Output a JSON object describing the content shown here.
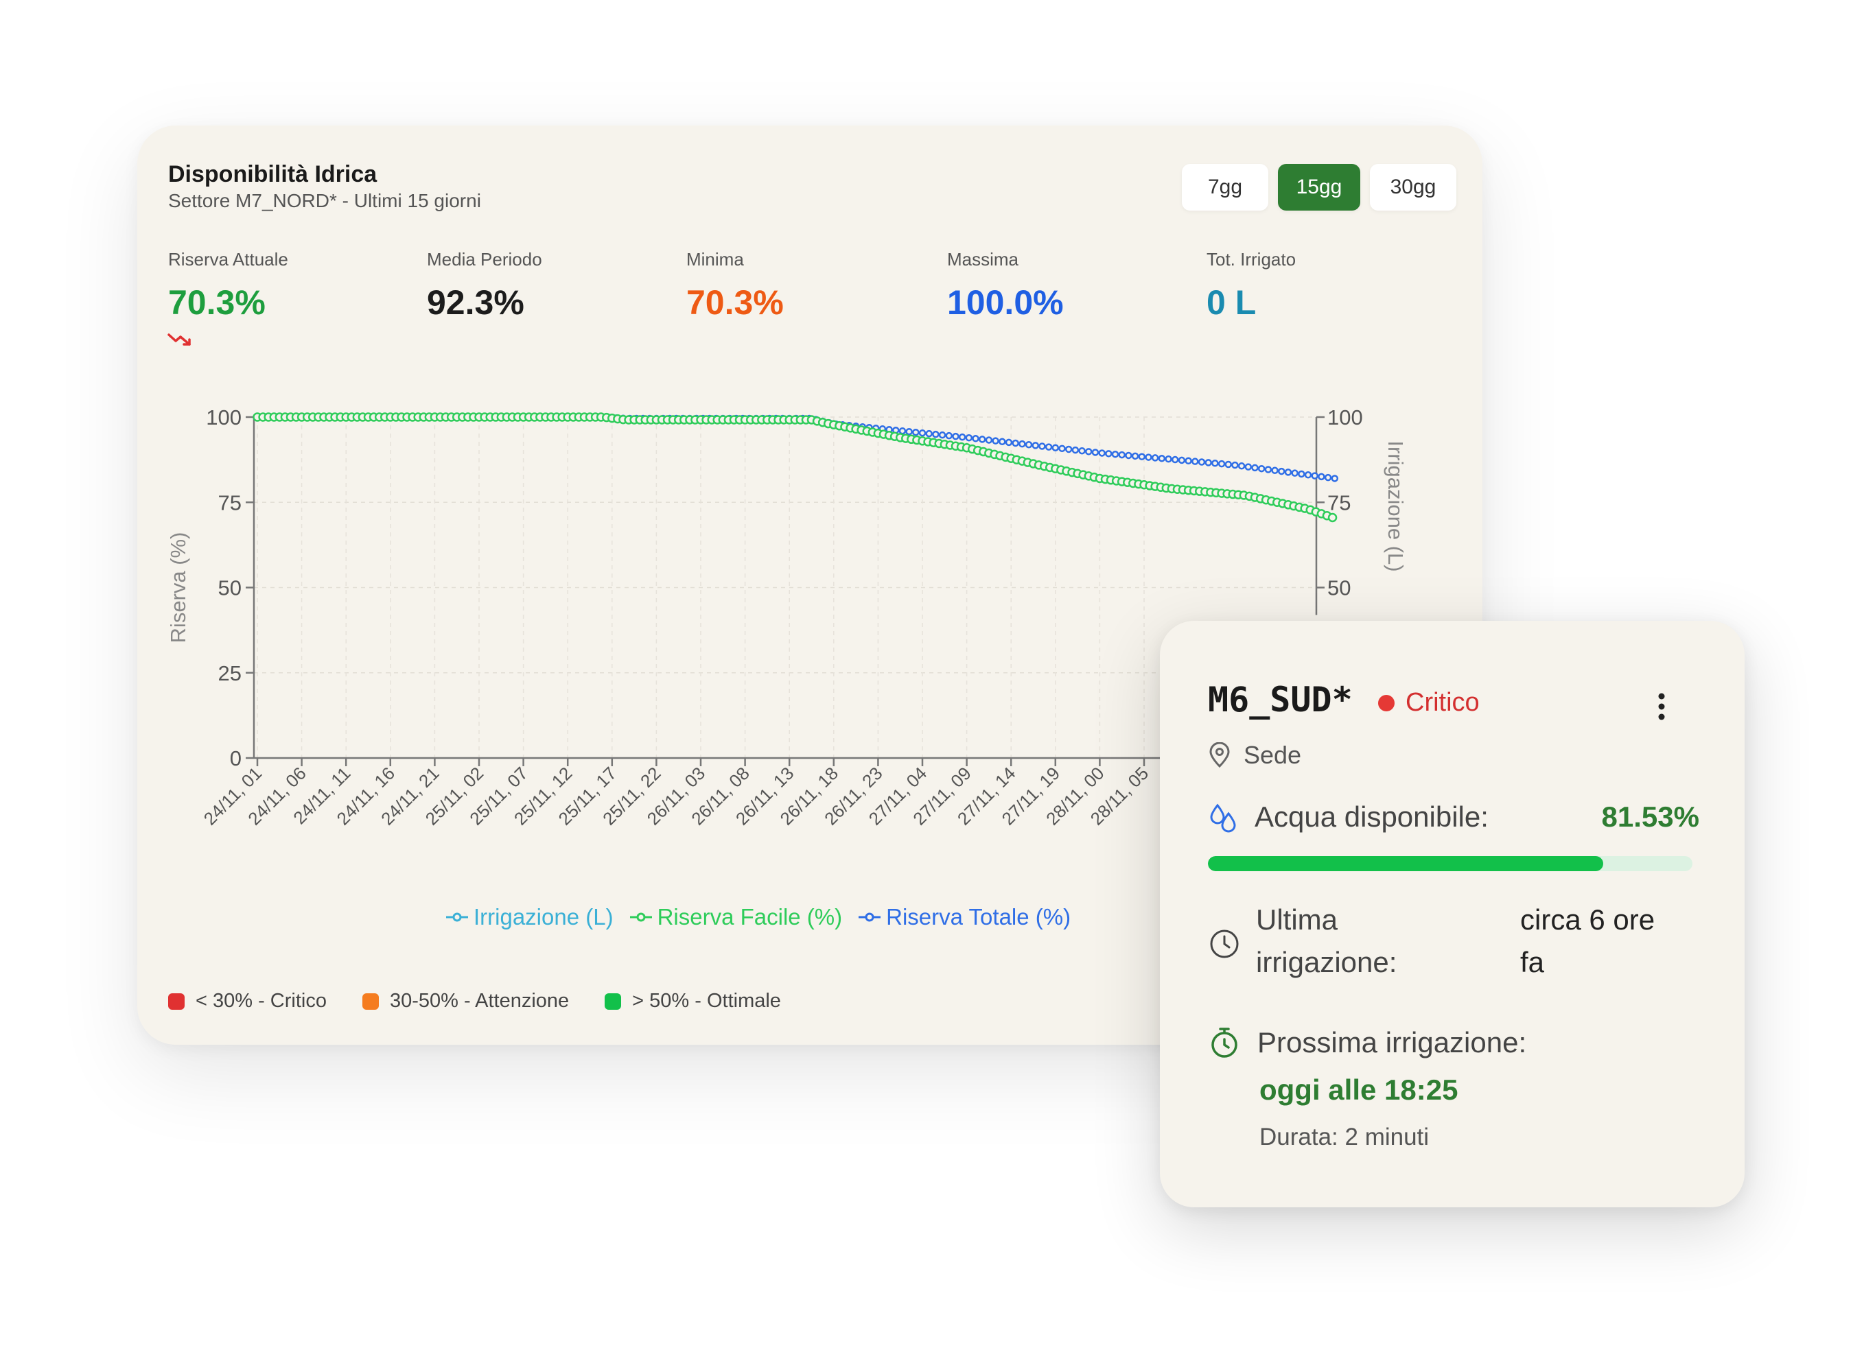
{
  "header": {
    "title": "Disponibilità Idrica",
    "subtitle": "Settore M7_NORD* - Ultimi 15 giorni"
  },
  "range_buttons": [
    {
      "label": "7gg",
      "active": false
    },
    {
      "label": "15gg",
      "active": true
    },
    {
      "label": "30gg",
      "active": false
    }
  ],
  "stats": [
    {
      "label": "Riserva Attuale",
      "value": "70.3%",
      "color": "#1e9e3e"
    },
    {
      "label": "Media Periodo",
      "value": "92.3%",
      "color": "#1c1c1c"
    },
    {
      "label": "Minima",
      "value": "70.3%",
      "color": "#ee5a14"
    },
    {
      "label": "Massima",
      "value": "100.0%",
      "color": "#1f5fe3"
    },
    {
      "label": "Tot. Irrigato",
      "value": "0 L",
      "color": "#1a8bb0"
    }
  ],
  "trend_icon": "trending-down-icon",
  "chart_data": {
    "type": "line",
    "ylabel": "Riserva (%)",
    "y2label": "Irrigazione (L)",
    "ylim": [
      0,
      100
    ],
    "y2lim": [
      0,
      100
    ],
    "yticks": [
      0,
      25,
      50,
      75,
      100
    ],
    "y2ticks_visible": [
      50,
      75,
      100
    ],
    "grid": true,
    "legend_position": "bottom",
    "x_tick_labels": [
      "24/11, 01",
      "24/11, 06",
      "24/11, 11",
      "24/11, 16",
      "24/11, 21",
      "25/11, 02",
      "25/11, 07",
      "25/11, 12",
      "25/11, 17",
      "25/11, 22",
      "26/11, 03",
      "26/11, 08",
      "26/11, 13",
      "26/11, 18",
      "26/11, 23",
      "27/11, 04",
      "27/11, 09",
      "27/11, 14",
      "27/11, 19",
      "28/11, 00",
      "28/11, 05"
    ],
    "series": [
      {
        "name": "Irrigazione (L)",
        "color": "#3bb0d6",
        "axis": "right",
        "values": []
      },
      {
        "name": "Riserva Facile (%)",
        "color": "#2ecc5a",
        "axis": "left",
        "x": [
          0,
          7.8,
          8.3,
          12.5,
          12.9,
          14.5,
          16.0,
          17.6,
          19.0,
          20.6,
          22.3,
          23.7,
          24.3
        ],
        "values": [
          100,
          100,
          99.2,
          99.2,
          98,
          94,
          91,
          86,
          82,
          79,
          77,
          73,
          70.3
        ]
      },
      {
        "name": "Riserva Totale (%)",
        "color": "#2f6ee6",
        "axis": "left",
        "x": [
          0,
          7.8,
          8.3,
          12.5,
          13.0,
          16.0,
          19.0,
          22.0,
          24.3
        ],
        "values": [
          100,
          100,
          99.6,
          99.6,
          98,
          94,
          89.5,
          86,
          82
        ]
      }
    ]
  },
  "zones": [
    {
      "label": "< 30% - Critico",
      "color": "#e03131"
    },
    {
      "label": "30-50% - Attenzione",
      "color": "#f57c1f"
    },
    {
      "label": "> 50% - Ottimale",
      "color": "#12c04a"
    }
  ],
  "sector_card": {
    "name": "M6_SUD*",
    "status": "Critico",
    "location": "Sede",
    "water_label": "Acqua disponibile:",
    "water_value": "81.53%",
    "water_fraction": 0.8153,
    "last_label": [
      "Ultima",
      "irrigazione:"
    ],
    "last_value": [
      "circa 6 ore",
      "fa"
    ],
    "next_label": "Prossima irrigazione:",
    "next_when": "oggi alle 18:25",
    "next_duration": "Durata: 2 minuti"
  }
}
